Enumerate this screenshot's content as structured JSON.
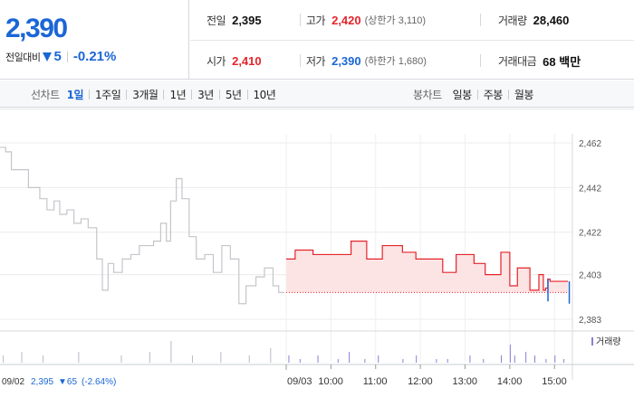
{
  "quote": {
    "price": "2,390",
    "change_label": "전일대비",
    "change_icon": "triangle-down-icon",
    "change_amount": "5",
    "change_pct": "-0.21%",
    "prev_close": {
      "label": "전일",
      "value": "2,395"
    },
    "high": {
      "label": "고가",
      "value": "2,420",
      "sub": "(상한가 3,110)"
    },
    "volume": {
      "label": "거래량",
      "value": "28,460"
    },
    "open": {
      "label": "시가",
      "value": "2,410"
    },
    "low": {
      "label": "저가",
      "value": "2,390",
      "sub": "(하한가 1,680)"
    },
    "amount": {
      "label": "거래대금",
      "value": "68 백만"
    }
  },
  "colors": {
    "up": "#e4242b",
    "down": "#1b66d6",
    "fill": "#fde4e4",
    "grey_line": "#c4c6ca"
  },
  "line_tabs": {
    "label": "선차트",
    "items": [
      {
        "label": "1일",
        "active": true
      },
      {
        "label": "1주일",
        "active": false
      },
      {
        "label": "3개월",
        "active": false
      },
      {
        "label": "1년",
        "active": false
      },
      {
        "label": "3년",
        "active": false
      },
      {
        "label": "5년",
        "active": false
      },
      {
        "label": "10년",
        "active": false
      }
    ]
  },
  "candle_tabs": {
    "label": "봉차트",
    "items": [
      {
        "label": "일봉"
      },
      {
        "label": "주봉"
      },
      {
        "label": "월봉"
      }
    ]
  },
  "chart_data": {
    "type": "line",
    "y_ticks": [
      "2,462",
      "2,442",
      "2,422",
      "2,403",
      "2,383"
    ],
    "y_tick_values": [
      2462,
      2442,
      2422,
      2403,
      2383
    ],
    "x_ticks": [
      "09/03",
      "10:00",
      "11:00",
      "12:00",
      "13:00",
      "14:00",
      "15:00"
    ],
    "x_tick_times": [
      9.0,
      10.0,
      11.0,
      12.0,
      13.0,
      14.0,
      15.0
    ],
    "reference_price": 2395,
    "volume_legend": "거래량",
    "prev_day": {
      "date": "09/02",
      "close": "2,395",
      "change": "▼65",
      "change_pct": "(-2.64%)",
      "series": [
        [
          0,
          2460
        ],
        [
          0.04,
          2458
        ],
        [
          0.08,
          2450
        ],
        [
          0.15,
          2450
        ],
        [
          0.2,
          2442
        ],
        [
          0.24,
          2442
        ],
        [
          0.28,
          2437
        ],
        [
          0.33,
          2432
        ],
        [
          0.38,
          2436
        ],
        [
          0.42,
          2430
        ],
        [
          0.47,
          2432
        ],
        [
          0.52,
          2426
        ],
        [
          0.57,
          2428
        ],
        [
          0.62,
          2424
        ],
        [
          0.68,
          2410
        ],
        [
          0.72,
          2396
        ],
        [
          0.76,
          2408
        ],
        [
          0.8,
          2404
        ],
        [
          0.86,
          2410
        ],
        [
          0.92,
          2412
        ],
        [
          0.98,
          2416
        ],
        [
          1.04,
          2416
        ],
        [
          1.08,
          2418
        ],
        [
          1.13,
          2426
        ],
        [
          1.17,
          2418
        ],
        [
          1.2,
          2436
        ],
        [
          1.24,
          2446
        ],
        [
          1.28,
          2437
        ],
        [
          1.33,
          2420
        ],
        [
          1.38,
          2410
        ],
        [
          1.44,
          2412
        ],
        [
          1.5,
          2404
        ],
        [
          1.56,
          2416
        ],
        [
          1.62,
          2410
        ],
        [
          1.68,
          2390
        ],
        [
          1.73,
          2398
        ],
        [
          1.8,
          2402
        ],
        [
          1.86,
          2406
        ],
        [
          1.92,
          2398
        ],
        [
          1.96,
          2395
        ],
        [
          2.0,
          2395
        ]
      ]
    },
    "today": {
      "series": [
        [
          9.0,
          2410
        ],
        [
          9.15,
          2410
        ],
        [
          9.2,
          2414
        ],
        [
          9.55,
          2414
        ],
        [
          9.6,
          2412
        ],
        [
          10.4,
          2412
        ],
        [
          10.45,
          2418
        ],
        [
          10.75,
          2418
        ],
        [
          10.8,
          2410
        ],
        [
          11.1,
          2410
        ],
        [
          11.15,
          2416
        ],
        [
          11.55,
          2416
        ],
        [
          11.6,
          2413
        ],
        [
          11.85,
          2413
        ],
        [
          11.9,
          2410
        ],
        [
          12.45,
          2410
        ],
        [
          12.5,
          2404
        ],
        [
          12.75,
          2404
        ],
        [
          12.8,
          2412
        ],
        [
          13.15,
          2412
        ],
        [
          13.2,
          2408
        ],
        [
          13.4,
          2408
        ],
        [
          13.45,
          2403
        ],
        [
          13.75,
          2403
        ],
        [
          13.8,
          2413
        ],
        [
          13.95,
          2413
        ],
        [
          14.0,
          2398
        ],
        [
          14.12,
          2398
        ],
        [
          14.17,
          2406
        ],
        [
          14.4,
          2406
        ],
        [
          14.45,
          2396
        ],
        [
          14.6,
          2396
        ],
        [
          14.65,
          2403
        ],
        [
          14.72,
          2403
        ],
        [
          14.75,
          2396
        ],
        [
          14.8,
          2397
        ],
        [
          14.85,
          2401
        ],
        [
          14.9,
          2400
        ],
        [
          15.3,
          2400
        ],
        [
          15.33,
          2390
        ]
      ]
    },
    "volume_bars": [
      [
        0.02,
        2
      ],
      [
        0.15,
        3
      ],
      [
        0.3,
        2
      ],
      [
        0.55,
        3
      ],
      [
        0.85,
        2
      ],
      [
        1.05,
        3
      ],
      [
        1.2,
        6
      ],
      [
        1.35,
        2
      ],
      [
        1.55,
        3
      ],
      [
        1.75,
        2
      ],
      [
        1.9,
        4
      ],
      [
        9.05,
        2
      ],
      [
        9.3,
        1
      ],
      [
        9.7,
        2
      ],
      [
        10.15,
        1
      ],
      [
        10.4,
        3
      ],
      [
        10.75,
        1
      ],
      [
        11.05,
        2
      ],
      [
        11.6,
        1
      ],
      [
        11.9,
        2
      ],
      [
        12.35,
        1
      ],
      [
        12.6,
        1
      ],
      [
        13.1,
        2
      ],
      [
        13.4,
        1
      ],
      [
        13.8,
        2
      ],
      [
        14.0,
        5
      ],
      [
        14.1,
        2
      ],
      [
        14.35,
        3
      ],
      [
        14.55,
        2
      ],
      [
        14.8,
        1
      ],
      [
        15.0,
        2
      ],
      [
        15.2,
        1
      ]
    ]
  }
}
